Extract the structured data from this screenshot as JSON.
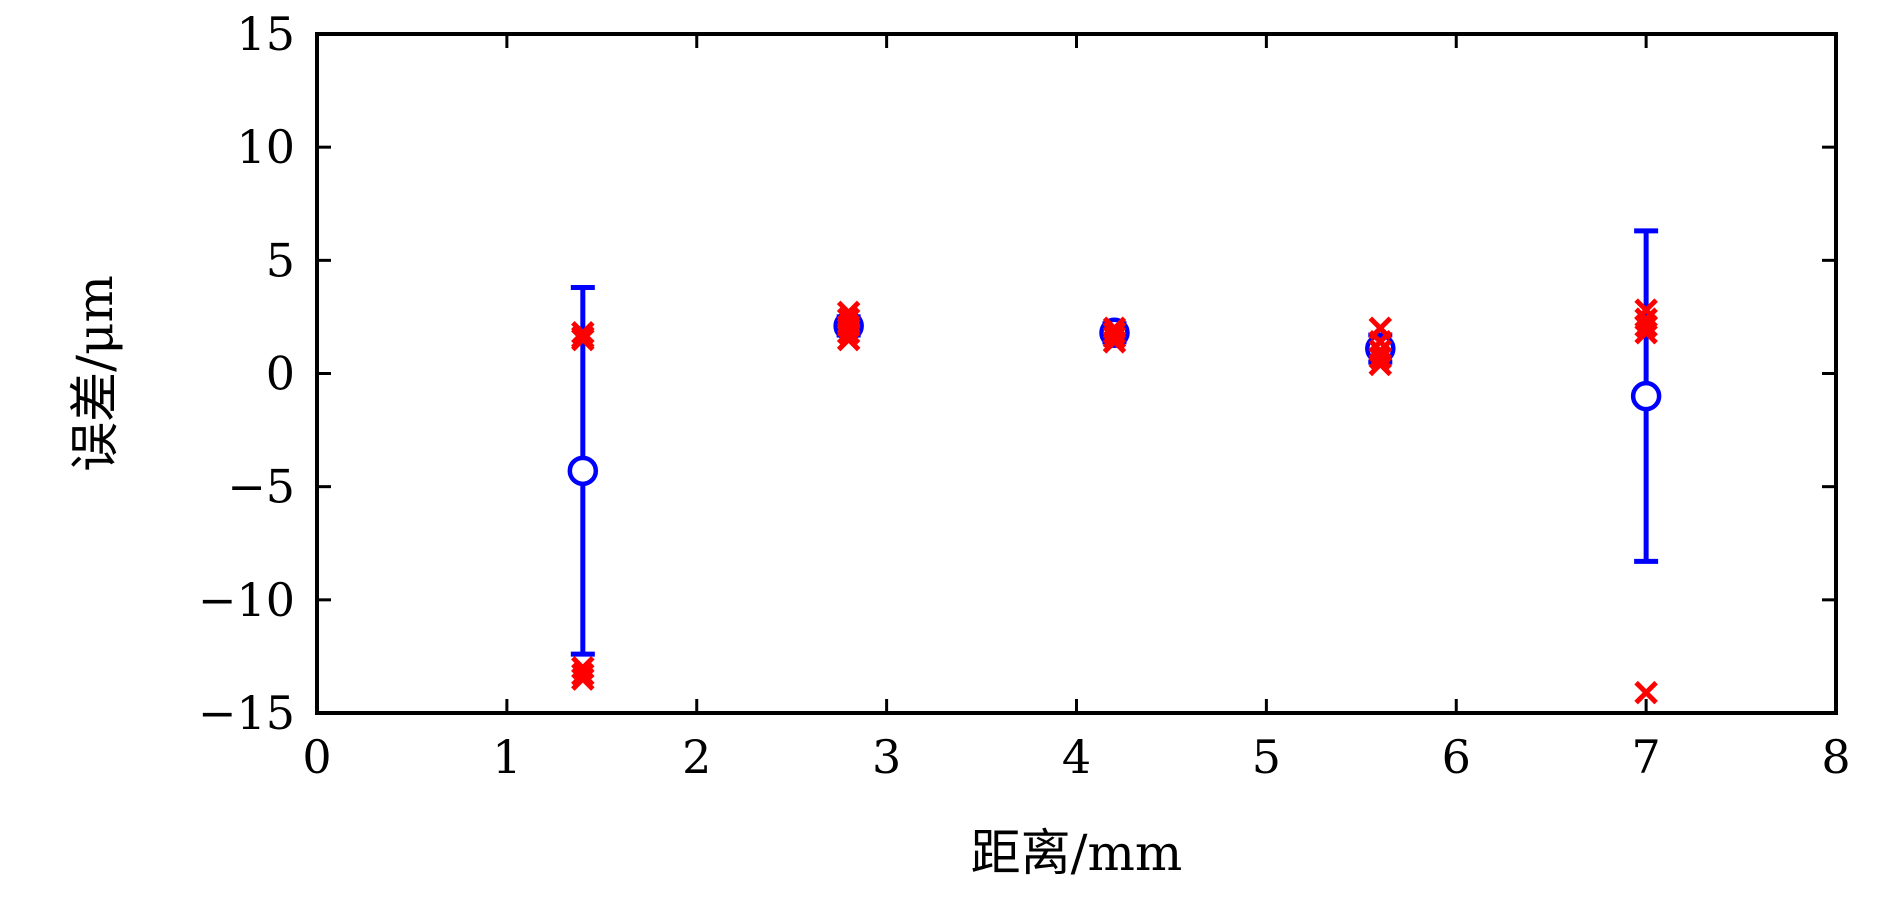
{
  "chart_data": {
    "type": "scatter",
    "title": "",
    "xlabel": "距离/mm",
    "ylabel": "误差/μm",
    "xlim": [
      0,
      8
    ],
    "ylim": [
      -15,
      15
    ],
    "x_ticks": [
      0,
      1,
      2,
      3,
      4,
      5,
      6,
      7,
      8
    ],
    "x_tick_labels": [
      "0",
      "1",
      "2",
      "3",
      "4",
      "5",
      "6",
      "7",
      "8"
    ],
    "y_ticks": [
      -15,
      -10,
      -5,
      0,
      5,
      10,
      15
    ],
    "y_tick_labels": [
      "−15",
      "−10",
      "−5",
      "0",
      "5",
      "10",
      "15"
    ],
    "grid": false,
    "series": [
      {
        "marker": "cross",
        "color": "#ff0000",
        "points": [
          [
            1.4,
            1.6
          ],
          [
            1.4,
            1.8
          ],
          [
            1.4,
            1.5
          ],
          [
            1.4,
            -13.0
          ],
          [
            1.4,
            -13.3
          ],
          [
            1.4,
            -13.5
          ],
          [
            2.8,
            2.7
          ],
          [
            2.8,
            2.4
          ],
          [
            2.8,
            2.1
          ],
          [
            2.8,
            1.8
          ],
          [
            2.8,
            1.5
          ],
          [
            4.2,
            2.0
          ],
          [
            4.2,
            1.8
          ],
          [
            4.2,
            1.6
          ],
          [
            4.2,
            1.4
          ],
          [
            5.6,
            2.0
          ],
          [
            5.6,
            1.4
          ],
          [
            5.6,
            1.0
          ],
          [
            5.6,
            0.7
          ],
          [
            5.6,
            0.4
          ],
          [
            7.0,
            2.8
          ],
          [
            7.0,
            2.4
          ],
          [
            7.0,
            2.1
          ],
          [
            7.0,
            1.8
          ],
          [
            7.0,
            -14.1
          ]
        ]
      },
      {
        "marker": "circle",
        "color": "#0000ff",
        "points": [
          {
            "x": 1.4,
            "y": -4.3,
            "lower": -12.4,
            "upper": 3.8
          },
          {
            "x": 2.8,
            "y": 2.1,
            "lower": 1.7,
            "upper": 2.5
          },
          {
            "x": 4.2,
            "y": 1.8,
            "lower": 1.4,
            "upper": 2.2
          },
          {
            "x": 5.6,
            "y": 1.1,
            "lower": 0.5,
            "upper": 1.7
          },
          {
            "x": 7.0,
            "y": -1.0,
            "lower": -8.3,
            "upper": 6.3
          }
        ]
      }
    ]
  }
}
